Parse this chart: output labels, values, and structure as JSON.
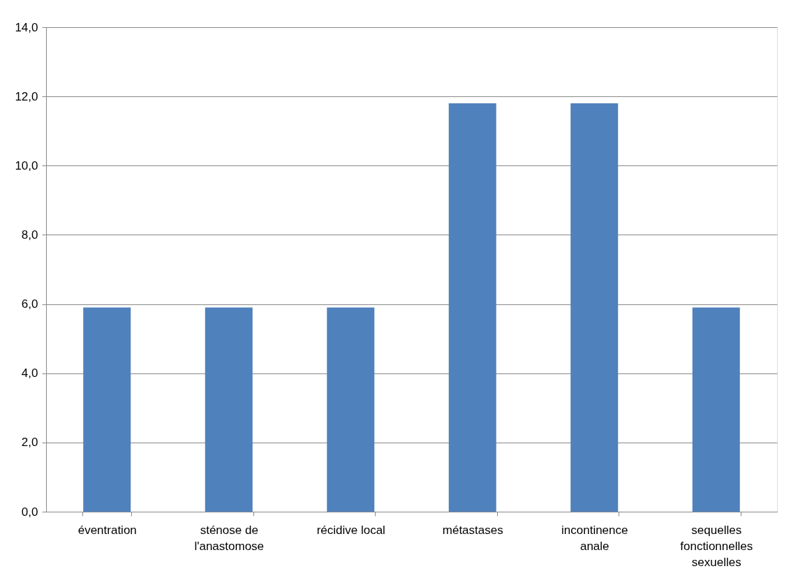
{
  "chart_data": {
    "type": "bar",
    "categories": [
      "éventration",
      "sténose de l'anastomose",
      "récidive local",
      "métastases",
      "incontinence anale",
      "sequelles fonctionnelles sexuelles"
    ],
    "values": [
      5.9,
      5.9,
      5.9,
      11.8,
      11.8,
      5.9
    ],
    "color": "#4f81bd",
    "ylim": [
      0,
      14
    ],
    "yticks": [
      {
        "value": 0,
        "label": "0,0"
      },
      {
        "value": 2,
        "label": "2,0"
      },
      {
        "value": 4,
        "label": "4,0"
      },
      {
        "value": 6,
        "label": "6,0"
      },
      {
        "value": 8,
        "label": "8,0"
      },
      {
        "value": 10,
        "label": "10,0"
      },
      {
        "value": 12,
        "label": "12,0"
      },
      {
        "value": 14,
        "label": "14,0"
      }
    ],
    "grid": "y"
  }
}
